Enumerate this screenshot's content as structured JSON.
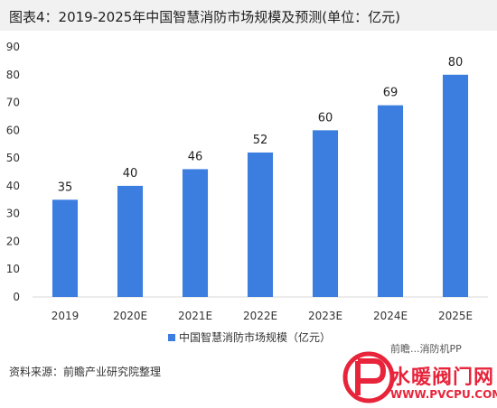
{
  "title": "图表4：2019-2025年中国智慧消防市场规模及预测(单位：亿元)",
  "source": "资料来源：前瞻产业研究院整理",
  "watermark": {
    "top_text": "前瞻...消防机PP",
    "brand": "水暖阀门网",
    "url": "WWW.PVCPU.COM"
  },
  "colors": {
    "bar": "#3b7ee0",
    "axis": "#d9d9d9",
    "brand": "#e8243b"
  },
  "chart_data": {
    "type": "bar",
    "categories": [
      "2019",
      "2020E",
      "2021E",
      "2022E",
      "2023E",
      "2024E",
      "2025E"
    ],
    "series": [
      {
        "name": "中国智慧消防市场规模（亿元）",
        "values": [
          35,
          40,
          46,
          52,
          60,
          69,
          80
        ]
      }
    ],
    "title": "图表4：2019-2025年中国智慧消防市场规模及预测(单位：亿元)",
    "xlabel": "",
    "ylabel": "",
    "ylim": [
      0,
      90
    ],
    "yticks": [
      0,
      10,
      20,
      30,
      40,
      50,
      60,
      70,
      80,
      90
    ],
    "grid": false,
    "legend": "bottom-center"
  }
}
